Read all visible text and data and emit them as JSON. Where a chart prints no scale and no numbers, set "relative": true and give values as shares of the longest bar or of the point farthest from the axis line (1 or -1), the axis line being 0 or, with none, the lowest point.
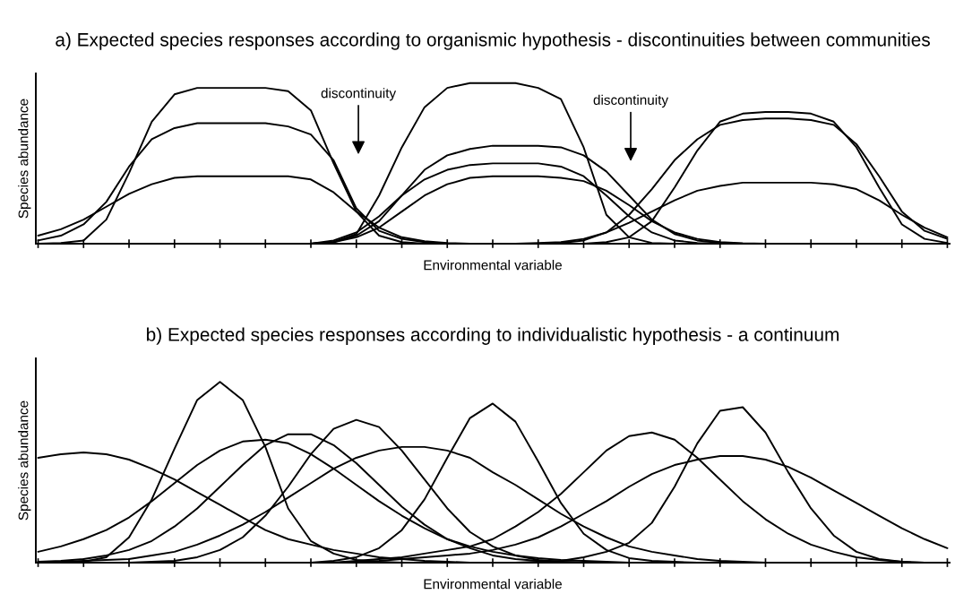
{
  "chart_data": [
    {
      "type": "line",
      "relative": true,
      "title": "a) Expected species responses according to organismic hypothesis - discontinuities between communities",
      "xlabel": "Environmental variable",
      "ylabel": "Species abundance",
      "annotations": [
        "discontinuity",
        "discontinuity"
      ],
      "categories": [
        null,
        null,
        null,
        null,
        null,
        null,
        null,
        null,
        null,
        null,
        null,
        null,
        null,
        null,
        null,
        null,
        null,
        null,
        null,
        null,
        null,
        null,
        null,
        null,
        null,
        null,
        null,
        null,
        null,
        null,
        null,
        null,
        null,
        null,
        null,
        null,
        null,
        null,
        null,
        null,
        null
      ],
      "series": [
        {
          "color": "#000000",
          "values": [
            0,
            0.005,
            0.02,
            0.15,
            0.44,
            0.76,
            0.93,
            0.97,
            0.97,
            0.97,
            0.97,
            0.95,
            0.83,
            0.5,
            0.2,
            0.05,
            0.01,
            0,
            null,
            null,
            null,
            null,
            null,
            null,
            null,
            null,
            null,
            null,
            null,
            null,
            null,
            null,
            null,
            null,
            null,
            null,
            null,
            null,
            null,
            null,
            null
          ]
        },
        {
          "color": "#000000",
          "values": [
            0.02,
            0.05,
            0.12,
            0.26,
            0.48,
            0.65,
            0.72,
            0.75,
            0.75,
            0.75,
            0.75,
            0.73,
            0.68,
            0.52,
            0.22,
            0.08,
            0.03,
            0.01,
            0,
            null,
            null,
            null,
            null,
            null,
            null,
            null,
            null,
            null,
            null,
            null,
            null,
            null,
            null,
            null,
            null,
            null,
            null,
            null,
            null,
            null,
            null
          ]
        },
        {
          "color": "#000000",
          "values": [
            0.05,
            0.09,
            0.15,
            0.23,
            0.31,
            0.37,
            0.41,
            0.42,
            0.42,
            0.42,
            0.42,
            0.42,
            0.4,
            0.32,
            0.2,
            0.1,
            0.04,
            0.015,
            0.005,
            0,
            null,
            null,
            null,
            null,
            null,
            null,
            null,
            null,
            null,
            null,
            null,
            null,
            null,
            null,
            null,
            null,
            null,
            null,
            null,
            null,
            null
          ]
        },
        {
          "color": "#000000",
          "values": [
            null,
            null,
            null,
            null,
            null,
            null,
            null,
            null,
            null,
            null,
            null,
            null,
            0,
            0.01,
            0.06,
            0.3,
            0.6,
            0.85,
            0.97,
            1,
            1,
            1,
            0.97,
            0.9,
            0.6,
            0.18,
            0.04,
            0.005,
            0,
            null,
            null,
            null,
            null,
            null,
            null,
            null,
            null,
            null,
            null,
            null,
            null
          ]
        },
        {
          "color": "#000000",
          "values": [
            null,
            null,
            null,
            null,
            null,
            null,
            null,
            null,
            null,
            null,
            null,
            null,
            0,
            0.01,
            0.05,
            0.14,
            0.3,
            0.46,
            0.55,
            0.59,
            0.61,
            0.61,
            0.61,
            0.6,
            0.55,
            0.45,
            0.3,
            0.15,
            0.06,
            0.02,
            0.005,
            0,
            null,
            null,
            null,
            null,
            null,
            null,
            null,
            null,
            null
          ]
        },
        {
          "color": "#000000",
          "values": [
            null,
            null,
            null,
            null,
            null,
            null,
            null,
            null,
            null,
            null,
            null,
            null,
            0,
            0.02,
            0.07,
            0.17,
            0.3,
            0.4,
            0.46,
            0.49,
            0.5,
            0.5,
            0.5,
            0.48,
            0.42,
            0.3,
            0.17,
            0.07,
            0.02,
            0.005,
            0,
            null,
            null,
            null,
            null,
            null,
            null,
            null,
            null,
            null,
            null
          ]
        },
        {
          "color": "#000000",
          "values": [
            null,
            null,
            null,
            null,
            null,
            null,
            null,
            null,
            null,
            null,
            null,
            null,
            0,
            0.01,
            0.04,
            0.1,
            0.2,
            0.3,
            0.37,
            0.41,
            0.42,
            0.42,
            0.42,
            0.41,
            0.39,
            0.33,
            0.24,
            0.14,
            0.07,
            0.03,
            0.01,
            0.003,
            0,
            null,
            null,
            null,
            null,
            null,
            null,
            null,
            null
          ]
        },
        {
          "color": "#000000",
          "values": [
            null,
            null,
            null,
            null,
            null,
            null,
            null,
            null,
            null,
            null,
            null,
            null,
            null,
            null,
            null,
            null,
            null,
            null,
            null,
            null,
            null,
            null,
            null,
            null,
            0,
            0.01,
            0.04,
            0.14,
            0.35,
            0.58,
            0.76,
            0.81,
            0.82,
            0.82,
            0.81,
            0.76,
            0.6,
            0.35,
            0.12,
            0.03,
            0.005
          ]
        },
        {
          "color": "#000000",
          "values": [
            null,
            null,
            null,
            null,
            null,
            null,
            null,
            null,
            null,
            null,
            null,
            null,
            null,
            null,
            null,
            null,
            null,
            null,
            null,
            null,
            null,
            null,
            0,
            0.005,
            0.02,
            0.07,
            0.18,
            0.34,
            0.52,
            0.65,
            0.74,
            0.77,
            0.78,
            0.78,
            0.77,
            0.74,
            0.62,
            0.42,
            0.2,
            0.08,
            0.03
          ]
        },
        {
          "color": "#000000",
          "values": [
            null,
            null,
            null,
            null,
            null,
            null,
            null,
            null,
            null,
            null,
            null,
            null,
            null,
            null,
            null,
            null,
            null,
            null,
            null,
            null,
            null,
            0,
            0.005,
            0.01,
            0.03,
            0.07,
            0.13,
            0.2,
            0.27,
            0.33,
            0.36,
            0.38,
            0.38,
            0.38,
            0.38,
            0.37,
            0.34,
            0.27,
            0.18,
            0.1,
            0.04
          ]
        }
      ]
    },
    {
      "type": "line",
      "relative": true,
      "title": "b) Expected species responses according to individualistic hypothesis - a continuum",
      "xlabel": "Environmental variable",
      "ylabel": "Species abundance",
      "categories": [
        null,
        null,
        null,
        null,
        null,
        null,
        null,
        null,
        null,
        null,
        null,
        null,
        null,
        null,
        null,
        null,
        null,
        null,
        null,
        null,
        null,
        null,
        null,
        null,
        null,
        null,
        null,
        null,
        null,
        null,
        null,
        null,
        null,
        null,
        null,
        null,
        null,
        null,
        null,
        null,
        null
      ],
      "series": [
        {
          "color": "#000000",
          "values": [
            0.58,
            0.6,
            0.61,
            0.6,
            0.57,
            0.52,
            0.46,
            0.39,
            0.32,
            0.25,
            0.18,
            0.13,
            0.1,
            0.07,
            0.05,
            0.03,
            0.02,
            0.01,
            0.005,
            0,
            null,
            null,
            null,
            null,
            null,
            null,
            null,
            null,
            null,
            null,
            null,
            null,
            null,
            null,
            null,
            null,
            null,
            null,
            null,
            null,
            null
          ]
        },
        {
          "color": "#000000",
          "values": [
            null,
            0,
            0.005,
            0.03,
            0.14,
            0.35,
            0.63,
            0.9,
            1,
            0.9,
            0.64,
            0.3,
            0.12,
            0.05,
            0.015,
            0.005,
            0,
            null,
            null,
            null,
            null,
            null,
            null,
            null,
            null,
            null,
            null,
            null,
            null,
            null,
            null,
            null,
            null,
            null,
            null,
            null,
            null,
            null,
            null,
            null,
            null
          ]
        },
        {
          "color": "#000000",
          "values": [
            0.06,
            0.09,
            0.13,
            0.18,
            0.25,
            0.34,
            0.44,
            0.54,
            0.62,
            0.67,
            0.68,
            0.66,
            0.6,
            0.52,
            0.43,
            0.34,
            0.26,
            0.19,
            0.13,
            0.09,
            0.06,
            0.04,
            0.025,
            0.015,
            0.01,
            0.005,
            0,
            null,
            null,
            null,
            null,
            null,
            null,
            null,
            null,
            null,
            null,
            null,
            null,
            null,
            null
          ]
        },
        {
          "color": "#000000",
          "values": [
            0.005,
            0.01,
            0.02,
            0.04,
            0.07,
            0.12,
            0.2,
            0.3,
            0.42,
            0.54,
            0.65,
            0.71,
            0.71,
            0.65,
            0.55,
            0.43,
            0.31,
            0.21,
            0.13,
            0.08,
            0.04,
            0.02,
            0.01,
            0.005,
            0,
            null,
            null,
            null,
            null,
            null,
            null,
            null,
            null,
            null,
            null,
            null,
            null,
            null,
            null,
            null,
            null
          ]
        },
        {
          "color": "#000000",
          "values": [
            null,
            null,
            null,
            null,
            0,
            0.005,
            0.01,
            0.03,
            0.07,
            0.14,
            0.26,
            0.42,
            0.6,
            0.74,
            0.79,
            0.75,
            0.62,
            0.46,
            0.3,
            0.17,
            0.09,
            0.04,
            0.015,
            0.005,
            0,
            null,
            null,
            null,
            null,
            null,
            null,
            null,
            null,
            null,
            null,
            null,
            null,
            null,
            null,
            null,
            null
          ]
        },
        {
          "color": "#000000",
          "values": [
            0.005,
            0.005,
            0.01,
            0.015,
            0.02,
            0.04,
            0.06,
            0.1,
            0.15,
            0.21,
            0.28,
            0.36,
            0.44,
            0.52,
            0.58,
            0.62,
            0.64,
            0.64,
            0.62,
            0.58,
            0.5,
            0.43,
            0.35,
            0.27,
            0.2,
            0.14,
            0.09,
            0.06,
            0.04,
            0.02,
            0.01,
            0.005,
            0,
            null,
            null,
            null,
            null,
            null,
            null,
            null,
            null
          ]
        },
        {
          "color": "#000000",
          "values": [
            null,
            null,
            null,
            null,
            null,
            null,
            null,
            null,
            null,
            null,
            null,
            null,
            0,
            0.01,
            0.03,
            0.08,
            0.18,
            0.35,
            0.58,
            0.8,
            0.88,
            0.78,
            0.56,
            0.33,
            0.16,
            0.07,
            0.025,
            0.01,
            0.005,
            0,
            null,
            null,
            null,
            null,
            null,
            null,
            null,
            null,
            null,
            null,
            null
          ]
        },
        {
          "color": "#000000",
          "values": [
            null,
            null,
            null,
            null,
            null,
            null,
            null,
            null,
            null,
            null,
            null,
            null,
            null,
            0,
            0.01,
            0.02,
            0.03,
            0.05,
            0.07,
            0.09,
            0.13,
            0.2,
            0.28,
            0.38,
            0.5,
            0.62,
            0.7,
            0.72,
            0.68,
            0.58,
            0.46,
            0.34,
            0.24,
            0.16,
            0.1,
            0.06,
            0.03,
            0.015,
            0.005,
            0,
            null
          ]
        },
        {
          "color": "#000000",
          "values": [
            null,
            null,
            null,
            null,
            null,
            null,
            null,
            null,
            null,
            null,
            null,
            null,
            null,
            null,
            null,
            null,
            null,
            null,
            null,
            null,
            null,
            0,
            0.005,
            0.01,
            0.03,
            0.06,
            0.11,
            0.22,
            0.42,
            0.66,
            0.84,
            0.86,
            0.72,
            0.5,
            0.3,
            0.15,
            0.06,
            0.02,
            0.005,
            0,
            null
          ]
        },
        {
          "color": "#000000",
          "values": [
            null,
            null,
            null,
            null,
            null,
            null,
            null,
            null,
            null,
            null,
            null,
            null,
            null,
            0,
            0.005,
            0.01,
            0.02,
            0.03,
            0.04,
            0.05,
            0.07,
            0.1,
            0.14,
            0.2,
            0.27,
            0.34,
            0.42,
            0.49,
            0.54,
            0.57,
            0.59,
            0.59,
            0.57,
            0.53,
            0.47,
            0.4,
            0.33,
            0.26,
            0.19,
            0.13,
            0.08
          ]
        }
      ]
    }
  ]
}
